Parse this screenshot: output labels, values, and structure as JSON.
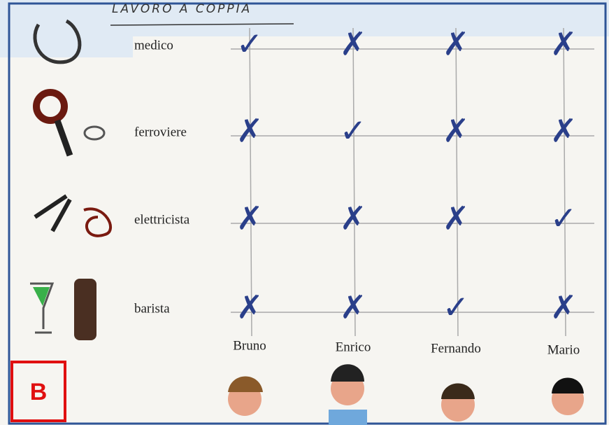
{
  "header": {
    "title": "LAVORO A COPPIA"
  },
  "table": {
    "columns": [
      "Bruno",
      "Enrico",
      "Fernando",
      "Mario"
    ],
    "rows": [
      {
        "label": "medico",
        "marks": [
          "✓",
          "✗",
          "✗",
          "✗"
        ]
      },
      {
        "label": "ferroviere",
        "marks": [
          "✗",
          "✓",
          "✗",
          "✗"
        ]
      },
      {
        "label": "elettricista",
        "marks": [
          "✗",
          "✗",
          "✗",
          "✓"
        ]
      },
      {
        "label": "barista",
        "marks": [
          "✗",
          "✗",
          "✓",
          "✗"
        ]
      }
    ]
  },
  "badge": "B"
}
